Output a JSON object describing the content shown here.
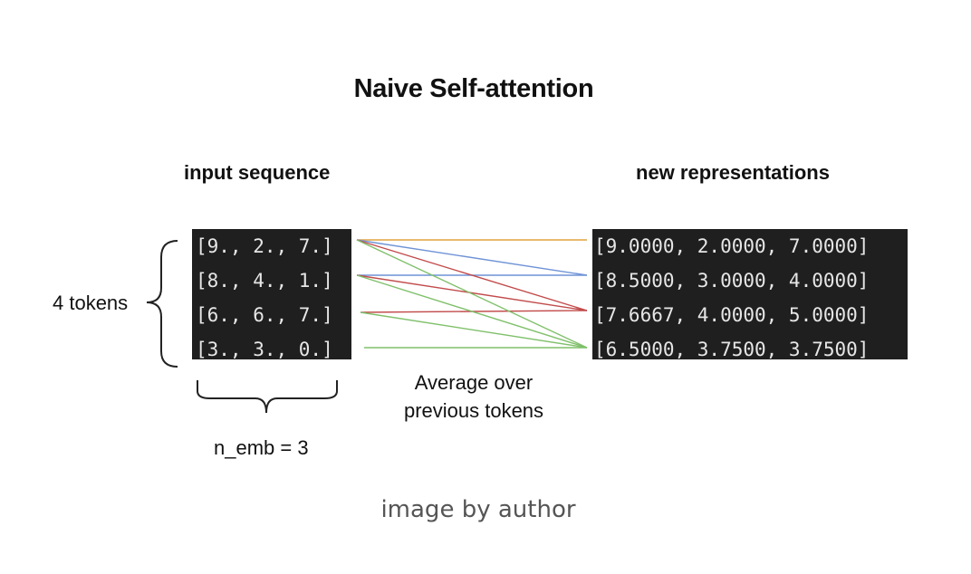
{
  "title": "Naive Self-attention",
  "input": {
    "heading": "input sequence",
    "rows": [
      "[9., 2., 7.]",
      "[8., 4., 1.]",
      "[6., 6., 7.]",
      "[3., 3., 0.]"
    ]
  },
  "output": {
    "heading": "new representations",
    "rows": [
      "[9.0000, 2.0000, 7.0000]",
      "[8.5000, 3.0000, 4.0000]",
      "[7.6667, 4.0000, 5.0000]",
      "[6.5000, 3.7500, 3.7500]"
    ]
  },
  "tokens_label": "4 tokens",
  "n_emb_label": "n_emb = 3",
  "average_caption": [
    "Average over",
    "previous tokens"
  ],
  "credit": "image by author",
  "colors": {
    "output_1": "#e0a340",
    "output_2": "#6f93d6",
    "output_3": "#c24b4b",
    "output_4": "#7fc06a",
    "matrix_bg": "#1f1f1f"
  }
}
